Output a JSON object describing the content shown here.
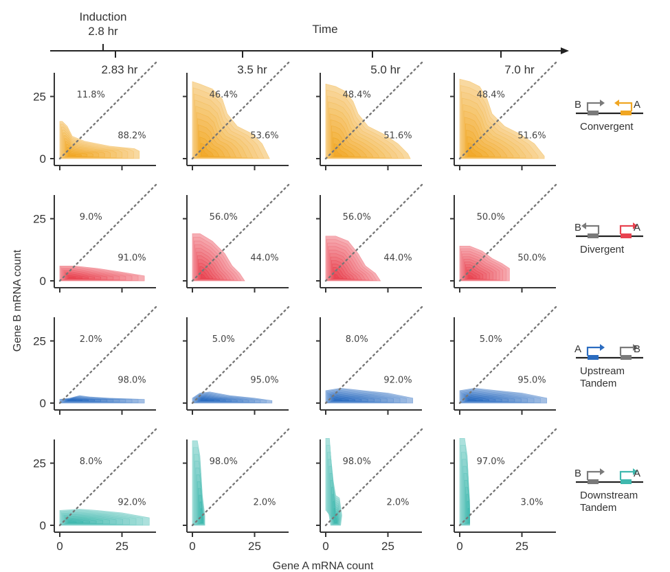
{
  "timeline": {
    "title": "Time",
    "induction_line1": "Induction",
    "induction_line2": "2.8 hr"
  },
  "colors": {
    "convergent": "#f0a623",
    "divergent": "#e8424f",
    "upstream_tandem": "#2b6cc0",
    "downstream_tandem": "#3fb8ae",
    "gene_b_grey": "#7a7a7a",
    "diagonal": "#777777"
  },
  "chart_data": {
    "type": "contour-grid",
    "xlabel": "Gene A mRNA count",
    "ylabel": "Gene B mRNA count",
    "xlim": [
      -2,
      40
    ],
    "ylim": [
      -2,
      40
    ],
    "xticks": [
      0,
      25
    ],
    "yticks": [
      0,
      25
    ],
    "columns": [
      "2.83 hr",
      "3.5 hr",
      "5.0 hr",
      "7.0 hr"
    ],
    "rows": [
      {
        "name": "Convergent",
        "color_key": "convergent",
        "gene_a_right": true,
        "gene_b_right": true,
        "schematic": {
          "left_gene": "B",
          "right_gene": "A",
          "left_arrow": "right",
          "right_arrow": "left"
        },
        "panels": [
          {
            "upper": "11.8%",
            "lower": "88.2%",
            "shape": [
              [
                0,
                15
              ],
              [
                1,
                15
              ],
              [
                3,
                13
              ],
              [
                5,
                9
              ],
              [
                10,
                7
              ],
              [
                20,
                5
              ],
              [
                30,
                4
              ],
              [
                32,
                3
              ],
              [
                32,
                0
              ],
              [
                0,
                0
              ]
            ]
          },
          {
            "upper": "46.4%",
            "lower": "53.6%",
            "shape": [
              [
                0,
                31
              ],
              [
                3,
                30
              ],
              [
                8,
                28
              ],
              [
                12,
                24
              ],
              [
                14,
                18
              ],
              [
                18,
                13
              ],
              [
                24,
                10
              ],
              [
                28,
                6
              ],
              [
                31,
                0
              ],
              [
                0,
                0
              ]
            ]
          },
          {
            "upper": "48.4%",
            "lower": "51.6%",
            "shape": [
              [
                0,
                30
              ],
              [
                4,
                29
              ],
              [
                8,
                27
              ],
              [
                11,
                23
              ],
              [
                13,
                18
              ],
              [
                17,
                13
              ],
              [
                23,
                10
              ],
              [
                29,
                6
              ],
              [
                33,
                2
              ],
              [
                34,
                0
              ],
              [
                0,
                0
              ]
            ]
          },
          {
            "upper": "48.4%",
            "lower": "51.6%",
            "shape": [
              [
                0,
                32
              ],
              [
                4,
                31
              ],
              [
                8,
                29
              ],
              [
                11,
                24
              ],
              [
                13,
                18
              ],
              [
                18,
                13
              ],
              [
                24,
                10
              ],
              [
                30,
                6
              ],
              [
                34,
                1
              ],
              [
                34,
                0
              ],
              [
                0,
                0
              ]
            ]
          }
        ]
      },
      {
        "name": "Divergent",
        "color_key": "divergent",
        "schematic": {
          "left_gene": "B",
          "right_gene": "A",
          "left_arrow": "left",
          "right_arrow": "right"
        },
        "panels": [
          {
            "upper": "9.0%",
            "lower": "91.0%",
            "shape": [
              [
                0,
                6
              ],
              [
                6,
                6
              ],
              [
                15,
                5
              ],
              [
                25,
                3.5
              ],
              [
                34,
                2
              ],
              [
                34,
                0
              ],
              [
                0,
                0
              ]
            ]
          },
          {
            "upper": "56.0%",
            "lower": "44.0%",
            "shape": [
              [
                0,
                19
              ],
              [
                3,
                19
              ],
              [
                8,
                16
              ],
              [
                13,
                11
              ],
              [
                16,
                6
              ],
              [
                19,
                3
              ],
              [
                21,
                0
              ],
              [
                0,
                0
              ]
            ]
          },
          {
            "upper": "56.0%",
            "lower": "44.0%",
            "shape": [
              [
                0,
                18
              ],
              [
                4,
                18
              ],
              [
                9,
                16
              ],
              [
                13,
                11
              ],
              [
                16,
                6
              ],
              [
                20,
                3
              ],
              [
                22,
                0
              ],
              [
                0,
                0
              ]
            ]
          },
          {
            "upper": "50.0%",
            "lower": "50.0%",
            "shape": [
              [
                0,
                14
              ],
              [
                4,
                14
              ],
              [
                9,
                12
              ],
              [
                13,
                9
              ],
              [
                17,
                7
              ],
              [
                20,
                5
              ],
              [
                20,
                0
              ],
              [
                0,
                0
              ]
            ]
          }
        ]
      },
      {
        "name": "Upstream Tandem",
        "color_key": "upstream_tandem",
        "schematic": {
          "left_gene": "A",
          "right_gene": "B",
          "left_arrow": "right",
          "right_arrow": "right"
        },
        "panels": [
          {
            "upper": "2.0%",
            "lower": "98.0%",
            "shape": [
              [
                0,
                1.5
              ],
              [
                4,
                2
              ],
              [
                8,
                3
              ],
              [
                12,
                2.5
              ],
              [
                20,
                2
              ],
              [
                34,
                1.5
              ],
              [
                34,
                0
              ],
              [
                0,
                0
              ]
            ]
          },
          {
            "upper": "5.0%",
            "lower": "95.0%",
            "shape": [
              [
                0,
                2
              ],
              [
                3,
                4
              ],
              [
                7,
                4.5
              ],
              [
                15,
                3
              ],
              [
                25,
                2
              ],
              [
                32,
                1
              ],
              [
                32,
                0
              ],
              [
                0,
                0
              ]
            ]
          },
          {
            "upper": "8.0%",
            "lower": "92.0%",
            "shape": [
              [
                0,
                5
              ],
              [
                6,
                6
              ],
              [
                15,
                5
              ],
              [
                25,
                4
              ],
              [
                35,
                2
              ],
              [
                35,
                0
              ],
              [
                0,
                0
              ]
            ]
          },
          {
            "upper": "5.0%",
            "lower": "95.0%",
            "shape": [
              [
                0,
                5
              ],
              [
                6,
                6
              ],
              [
                15,
                5
              ],
              [
                25,
                4
              ],
              [
                35,
                2
              ],
              [
                35,
                0
              ],
              [
                0,
                0
              ]
            ]
          }
        ]
      },
      {
        "name": "Downstream Tandem",
        "color_key": "downstream_tandem",
        "schematic": {
          "left_gene": "B",
          "right_gene": "A",
          "left_arrow": "right",
          "right_arrow": "right"
        },
        "panels": [
          {
            "upper": "8.0%",
            "lower": "92.0%",
            "shape": [
              [
                0,
                6
              ],
              [
                8,
                6.5
              ],
              [
                15,
                6
              ],
              [
                25,
                5
              ],
              [
                36,
                3
              ],
              [
                36,
                0
              ],
              [
                0,
                0
              ]
            ]
          },
          {
            "upper": "98.0%",
            "lower": "2.0%",
            "shape": [
              [
                0,
                34
              ],
              [
                2,
                34
              ],
              [
                3,
                28
              ],
              [
                3.5,
                20
              ],
              [
                4,
                12
              ],
              [
                5,
                4
              ],
              [
                5,
                0
              ],
              [
                0,
                0
              ]
            ]
          },
          {
            "upper": "98.0%",
            "lower": "2.0%",
            "shape": [
              [
                0,
                35
              ],
              [
                1.5,
                35
              ],
              [
                2,
                28
              ],
              [
                3,
                18
              ],
              [
                4,
                12
              ],
              [
                5.5,
                11
              ],
              [
                6.5,
                4
              ],
              [
                6,
                0
              ],
              [
                2,
                0
              ],
              [
                1,
                6
              ],
              [
                0,
                6
              ]
            ]
          },
          {
            "upper": "97.0%",
            "lower": "3.0%",
            "shape": [
              [
                0,
                35
              ],
              [
                2,
                35
              ],
              [
                3,
                28
              ],
              [
                3.5,
                18
              ],
              [
                4,
                10
              ],
              [
                4,
                0
              ],
              [
                0,
                0
              ]
            ]
          }
        ]
      }
    ]
  }
}
